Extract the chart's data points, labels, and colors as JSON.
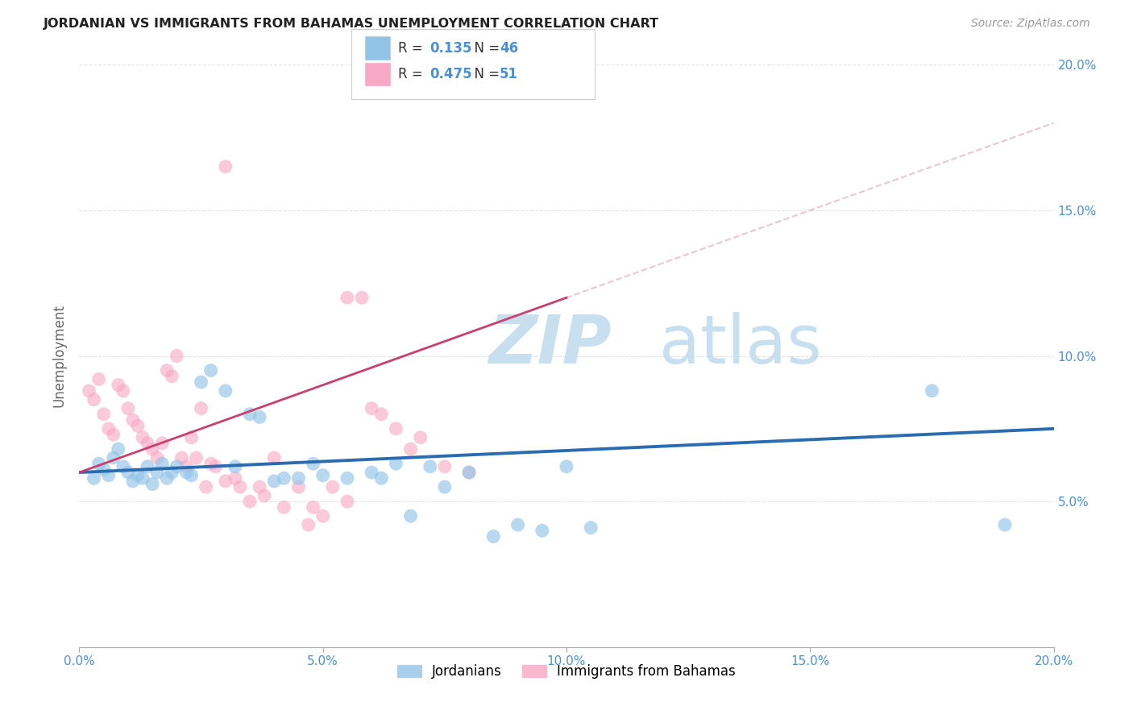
{
  "title": "JORDANIAN VS IMMIGRANTS FROM BAHAMAS UNEMPLOYMENT CORRELATION CHART",
  "source": "Source: ZipAtlas.com",
  "ylabel": "Unemployment",
  "xmin": 0.0,
  "xmax": 0.2,
  "ymin": 0.0,
  "ymax": 0.2,
  "xticks": [
    0.0,
    0.05,
    0.1,
    0.15,
    0.2
  ],
  "yticks": [
    0.05,
    0.1,
    0.15,
    0.2
  ],
  "xtick_labels": [
    "0.0%",
    "5.0%",
    "10.0%",
    "15.0%",
    "20.0%"
  ],
  "ytick_labels_right": [
    "5.0%",
    "10.0%",
    "15.0%",
    "20.0%"
  ],
  "blue_R": 0.135,
  "blue_N": 46,
  "pink_R": 0.475,
  "pink_N": 51,
  "blue_color": "#93c4e8",
  "pink_color": "#f7a8c4",
  "blue_line_color": "#2b6cb0",
  "pink_line_color": "#c94070",
  "blue_scatter": [
    [
      0.003,
      0.058
    ],
    [
      0.004,
      0.063
    ],
    [
      0.005,
      0.061
    ],
    [
      0.006,
      0.059
    ],
    [
      0.007,
      0.065
    ],
    [
      0.008,
      0.068
    ],
    [
      0.009,
      0.062
    ],
    [
      0.01,
      0.06
    ],
    [
      0.011,
      0.057
    ],
    [
      0.012,
      0.059
    ],
    [
      0.013,
      0.058
    ],
    [
      0.014,
      0.062
    ],
    [
      0.015,
      0.056
    ],
    [
      0.016,
      0.06
    ],
    [
      0.017,
      0.063
    ],
    [
      0.018,
      0.058
    ],
    [
      0.019,
      0.06
    ],
    [
      0.02,
      0.062
    ],
    [
      0.022,
      0.06
    ],
    [
      0.023,
      0.059
    ],
    [
      0.025,
      0.091
    ],
    [
      0.027,
      0.095
    ],
    [
      0.03,
      0.088
    ],
    [
      0.032,
      0.062
    ],
    [
      0.035,
      0.08
    ],
    [
      0.037,
      0.079
    ],
    [
      0.04,
      0.057
    ],
    [
      0.042,
      0.058
    ],
    [
      0.045,
      0.058
    ],
    [
      0.048,
      0.063
    ],
    [
      0.05,
      0.059
    ],
    [
      0.055,
      0.058
    ],
    [
      0.06,
      0.06
    ],
    [
      0.062,
      0.058
    ],
    [
      0.065,
      0.063
    ],
    [
      0.068,
      0.045
    ],
    [
      0.072,
      0.062
    ],
    [
      0.075,
      0.055
    ],
    [
      0.08,
      0.06
    ],
    [
      0.085,
      0.038
    ],
    [
      0.09,
      0.042
    ],
    [
      0.095,
      0.04
    ],
    [
      0.1,
      0.062
    ],
    [
      0.105,
      0.041
    ],
    [
      0.175,
      0.088
    ],
    [
      0.19,
      0.042
    ]
  ],
  "pink_scatter": [
    [
      0.002,
      0.088
    ],
    [
      0.003,
      0.085
    ],
    [
      0.004,
      0.092
    ],
    [
      0.005,
      0.08
    ],
    [
      0.006,
      0.075
    ],
    [
      0.007,
      0.073
    ],
    [
      0.008,
      0.09
    ],
    [
      0.009,
      0.088
    ],
    [
      0.01,
      0.082
    ],
    [
      0.011,
      0.078
    ],
    [
      0.012,
      0.076
    ],
    [
      0.013,
      0.072
    ],
    [
      0.014,
      0.07
    ],
    [
      0.015,
      0.068
    ],
    [
      0.016,
      0.065
    ],
    [
      0.017,
      0.07
    ],
    [
      0.018,
      0.095
    ],
    [
      0.019,
      0.093
    ],
    [
      0.02,
      0.1
    ],
    [
      0.021,
      0.065
    ],
    [
      0.022,
      0.062
    ],
    [
      0.023,
      0.072
    ],
    [
      0.024,
      0.065
    ],
    [
      0.025,
      0.082
    ],
    [
      0.026,
      0.055
    ],
    [
      0.027,
      0.063
    ],
    [
      0.028,
      0.062
    ],
    [
      0.03,
      0.057
    ],
    [
      0.032,
      0.058
    ],
    [
      0.033,
      0.055
    ],
    [
      0.035,
      0.05
    ],
    [
      0.037,
      0.055
    ],
    [
      0.038,
      0.052
    ],
    [
      0.04,
      0.065
    ],
    [
      0.042,
      0.048
    ],
    [
      0.045,
      0.055
    ],
    [
      0.047,
      0.042
    ],
    [
      0.048,
      0.048
    ],
    [
      0.05,
      0.045
    ],
    [
      0.052,
      0.055
    ],
    [
      0.055,
      0.05
    ],
    [
      0.06,
      0.082
    ],
    [
      0.062,
      0.08
    ],
    [
      0.065,
      0.075
    ],
    [
      0.068,
      0.068
    ],
    [
      0.07,
      0.072
    ],
    [
      0.075,
      0.062
    ],
    [
      0.08,
      0.06
    ],
    [
      0.03,
      0.165
    ],
    [
      0.055,
      0.12
    ],
    [
      0.058,
      0.12
    ]
  ],
  "watermark_zip": "ZIP",
  "watermark_atlas": "atlas",
  "watermark_color_zip": "#c8dff0",
  "watermark_color_atlas": "#c8dff0",
  "legend_blue_label": "Jordanians",
  "legend_pink_label": "Immigrants from Bahamas",
  "tick_label_color": "#4a90d9",
  "grid_color": "#dddddd"
}
